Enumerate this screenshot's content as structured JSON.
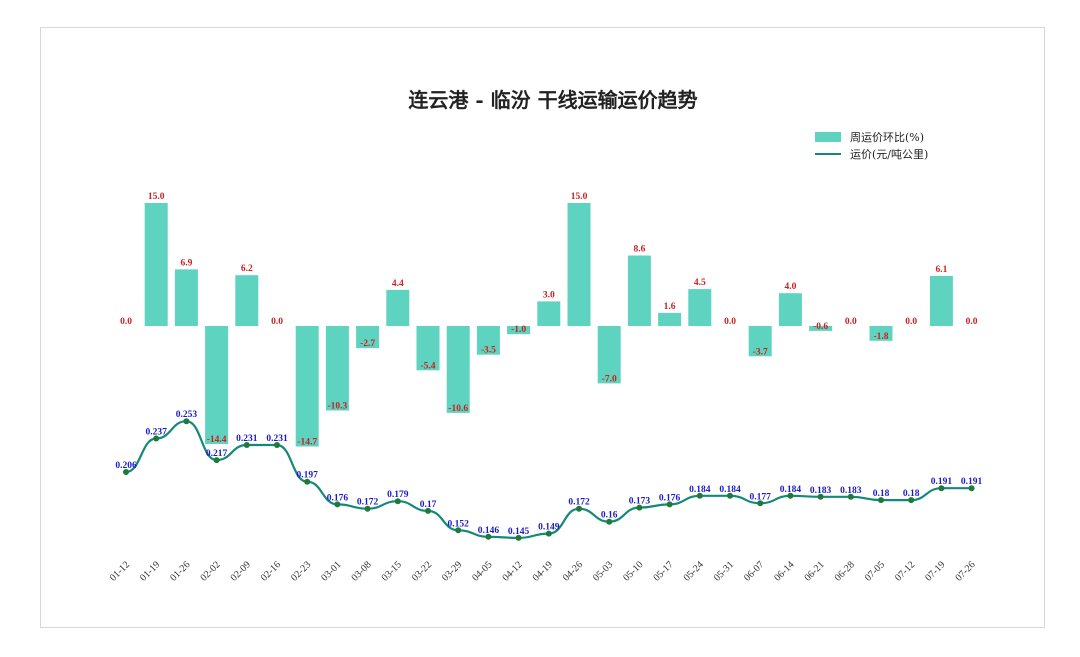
{
  "chart_data": {
    "type": "bar",
    "title": "连云港 - 临汾 干线运输运价趋势",
    "categories": [
      "01-12",
      "01-19",
      "01-26",
      "02-02",
      "02-09",
      "02-16",
      "02-23",
      "03-01",
      "03-08",
      "03-15",
      "03-22",
      "03-29",
      "04-05",
      "04-12",
      "04-19",
      "04-26",
      "05-03",
      "05-10",
      "05-17",
      "05-24",
      "05-31",
      "06-07",
      "06-14",
      "06-21",
      "06-28",
      "07-05",
      "07-12",
      "07-19",
      "07-26"
    ],
    "series": [
      {
        "name": "周运价环比(%)",
        "type": "bar",
        "color": "#5ed3c0",
        "values": [
          0.0,
          15.0,
          6.9,
          -14.4,
          6.2,
          0.0,
          -14.7,
          -10.3,
          -2.7,
          4.4,
          -5.4,
          -10.6,
          -3.5,
          -1.0,
          3.0,
          15.0,
          -7.0,
          8.6,
          1.6,
          4.5,
          0.0,
          -3.7,
          4.0,
          -0.6,
          0.0,
          -1.8,
          0.0,
          6.1,
          0.0
        ],
        "labels": [
          "0.0",
          "15.0",
          "6.9",
          "-14.4",
          "6.2",
          "0.0",
          "-14.7",
          "-10.3",
          "-2.7",
          "4.4",
          "-5.4",
          "-10.6",
          "-3.5",
          "-1.0",
          "3.0",
          "15.0",
          "-7.0",
          "8.6",
          "1.6",
          "4.5",
          "0.0",
          "-3.7",
          "4.0",
          "-0.6",
          "0.0",
          "-1.8",
          "0.0",
          "6.1",
          "0.0"
        ]
      },
      {
        "name": "运价(元/吨公里)",
        "type": "line",
        "color": "#14897a",
        "marker_color": "#1f7a3a",
        "values": [
          0.206,
          0.237,
          0.253,
          0.217,
          0.231,
          0.231,
          0.197,
          0.176,
          0.172,
          0.179,
          0.17,
          0.152,
          0.146,
          0.145,
          0.149,
          0.172,
          0.16,
          0.173,
          0.176,
          0.184,
          0.184,
          0.177,
          0.184,
          0.183,
          0.183,
          0.18,
          0.18,
          0.191,
          0.191
        ],
        "labels": [
          "0.206",
          "0.237",
          "0.253",
          "0.217",
          "0.231",
          "0.231",
          "0.197",
          "0.176",
          "0.172",
          "0.179",
          "0.17",
          "0.152",
          "0.146",
          "0.145",
          "0.149",
          "0.172",
          "0.16",
          "0.173",
          "0.176",
          "0.184",
          "0.184",
          "0.177",
          "0.184",
          "0.183",
          "0.183",
          "0.18",
          "0.18",
          "0.191",
          "0.191"
        ]
      }
    ],
    "legend_position": "top-right",
    "grid": false,
    "bar_label_color": "#cc1f1f",
    "line_label_color": "#1a1acc"
  }
}
